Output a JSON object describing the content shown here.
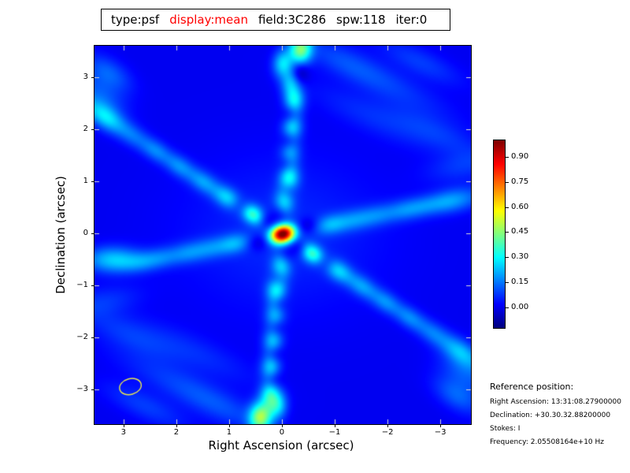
{
  "title_bar": {
    "segments": [
      {
        "text": "type:psf",
        "color": "#000000"
      },
      {
        "text": "display:mean",
        "color": "#ff0000"
      },
      {
        "text": "field:3C286",
        "color": "#000000"
      },
      {
        "text": "spw:118",
        "color": "#000000"
      },
      {
        "text": "iter:0",
        "color": "#000000"
      }
    ]
  },
  "chart_data": {
    "type": "heatmap",
    "description": "Radio interferometer PSF (point spread function) raster, jet colormap, peak normalized to 1.0 at field center with positive/negative sidelobe chains",
    "colormap": "jet",
    "xlabel": "Right Ascension (arcsec)",
    "ylabel": "Declination (arcsec)",
    "x_tick_values": [
      3,
      2,
      1,
      0,
      -1,
      -2,
      -3
    ],
    "x_tick_labels": [
      "3",
      "2",
      "1",
      "0",
      "−1",
      "−2",
      "−3"
    ],
    "y_tick_values": [
      3,
      2,
      1,
      0,
      -1,
      -2,
      -3
    ],
    "y_tick_labels": [
      "3",
      "2",
      "1",
      "0",
      "−1",
      "−2",
      "−3"
    ],
    "x_range_arcsec": [
      3.55,
      -3.58
    ],
    "y_range_arcsec": [
      3.6,
      -3.66
    ],
    "value_range": [
      -0.125,
      1.0
    ],
    "peak": {
      "ra_arcsec": 0.0,
      "dec_arcsec": 0.0,
      "value": 1.0
    },
    "colorbar": {
      "tick_values": [
        0.9,
        0.75,
        0.6,
        0.45,
        0.3,
        0.15,
        0.0
      ],
      "tick_labels": [
        "0.90",
        "0.75",
        "0.60",
        "0.45",
        "0.30",
        "0.15",
        "0.00"
      ]
    },
    "beam": {
      "ra_arcsec": 2.87,
      "dec_arcsec": -2.94,
      "semi_major_arcsec": 0.21,
      "semi_minor_arcsec": 0.15,
      "rotation_deg": -15,
      "color": "#e8e850"
    },
    "inner_tick_color": "#d8d8d8",
    "feature_fields": [
      "ra_arcsec",
      "dec_arcsec",
      "amplitude",
      "sigma_major_arcsec",
      "sigma_minor_arcsec",
      "rotation_deg_screen"
    ],
    "features": [
      [
        0.0,
        0.0,
        1.0,
        0.165,
        0.12,
        -15
      ],
      [
        0.0,
        0.0,
        0.06,
        1.3,
        1.0,
        0
      ],
      [
        0.05,
        0.43,
        -0.115,
        0.16,
        0.12,
        -85
      ],
      [
        -0.05,
        -0.43,
        -0.115,
        0.16,
        0.12,
        -85
      ],
      [
        0.34,
        0.27,
        -0.11,
        0.15,
        0.11,
        33
      ],
      [
        -0.34,
        -0.27,
        -0.11,
        0.15,
        0.11,
        33
      ],
      [
        0.46,
        -0.16,
        -0.09,
        0.16,
        0.11,
        -11
      ],
      [
        -0.46,
        0.16,
        -0.09,
        0.16,
        0.11,
        -11
      ],
      [
        0.55,
        0.37,
        0.34,
        0.17,
        0.12,
        33
      ],
      [
        -0.55,
        -0.37,
        0.34,
        0.17,
        0.12,
        33
      ],
      [
        0.8,
        0.54,
        -0.07,
        0.15,
        0.11,
        33
      ],
      [
        -0.8,
        -0.54,
        -0.07,
        0.15,
        0.11,
        33
      ],
      [
        1.05,
        0.7,
        0.22,
        0.2,
        0.13,
        33
      ],
      [
        -1.05,
        -0.7,
        0.22,
        0.2,
        0.13,
        33
      ],
      [
        1.5,
        1.0,
        0.17,
        0.22,
        0.13,
        33
      ],
      [
        -1.5,
        -1.0,
        0.17,
        0.22,
        0.13,
        33
      ],
      [
        1.95,
        1.3,
        0.16,
        0.22,
        0.13,
        33
      ],
      [
        -1.95,
        -1.3,
        0.16,
        0.22,
        0.13,
        33
      ],
      [
        2.4,
        1.6,
        0.15,
        0.22,
        0.13,
        33
      ],
      [
        -2.4,
        -1.6,
        0.15,
        0.22,
        0.13,
        33
      ],
      [
        2.85,
        1.9,
        0.13,
        0.25,
        0.14,
        33
      ],
      [
        -2.85,
        -1.9,
        0.14,
        0.25,
        0.14,
        33
      ],
      [
        3.3,
        2.2,
        0.18,
        0.25,
        0.15,
        33
      ],
      [
        -3.3,
        -2.2,
        0.14,
        0.25,
        0.15,
        33
      ],
      [
        3.55,
        2.4,
        0.13,
        0.3,
        0.16,
        33
      ],
      [
        -3.55,
        -2.4,
        0.12,
        0.3,
        0.16,
        33
      ],
      [
        -0.02,
        0.6,
        0.26,
        0.18,
        0.13,
        -85
      ],
      [
        0.02,
        -0.6,
        0.26,
        0.18,
        0.13,
        -85
      ],
      [
        -0.1,
        0.85,
        -0.1,
        0.14,
        0.11,
        -85
      ],
      [
        0.1,
        -0.85,
        -0.1,
        0.14,
        0.11,
        -85
      ],
      [
        -0.12,
        1.07,
        0.3,
        0.18,
        0.13,
        -85
      ],
      [
        0.12,
        -1.07,
        0.28,
        0.18,
        0.13,
        -85
      ],
      [
        -0.08,
        1.35,
        -0.09,
        0.14,
        0.11,
        -85
      ],
      [
        0.08,
        -1.35,
        -0.09,
        0.14,
        0.11,
        -85
      ],
      [
        -0.14,
        1.55,
        0.2,
        0.18,
        0.13,
        -85
      ],
      [
        0.14,
        -1.55,
        0.22,
        0.18,
        0.13,
        -85
      ],
      [
        -0.12,
        1.8,
        -0.09,
        0.14,
        0.11,
        -85
      ],
      [
        0.12,
        -1.8,
        -0.09,
        0.14,
        0.11,
        -85
      ],
      [
        -0.18,
        2.05,
        0.26,
        0.18,
        0.13,
        -85
      ],
      [
        0.18,
        -2.05,
        0.24,
        0.18,
        0.13,
        -85
      ],
      [
        -0.15,
        2.3,
        -0.1,
        0.14,
        0.11,
        -85
      ],
      [
        0.15,
        -2.3,
        -0.1,
        0.14,
        0.11,
        -85
      ],
      [
        -0.22,
        2.55,
        0.28,
        0.18,
        0.13,
        -85
      ],
      [
        0.22,
        -2.55,
        0.26,
        0.18,
        0.13,
        -85
      ],
      [
        -0.32,
        3.1,
        -0.12,
        0.15,
        0.12,
        -85
      ],
      [
        0.18,
        -2.8,
        -0.11,
        0.15,
        0.12,
        -85
      ],
      [
        -0.15,
        2.9,
        0.2,
        0.18,
        0.13,
        -85
      ],
      [
        0.24,
        -3.05,
        0.28,
        0.18,
        0.13,
        -85
      ],
      [
        0.0,
        3.27,
        0.25,
        0.18,
        0.13,
        -85
      ],
      [
        0.1,
        -3.29,
        0.25,
        0.18,
        0.13,
        -85
      ],
      [
        -0.34,
        3.54,
        0.42,
        0.2,
        0.15,
        -85
      ],
      [
        0.42,
        -3.51,
        0.45,
        0.2,
        0.15,
        -85
      ],
      [
        0.9,
        -0.18,
        0.16,
        0.22,
        0.13,
        -11
      ],
      [
        -0.9,
        0.18,
        0.16,
        0.22,
        0.13,
        -11
      ],
      [
        1.35,
        -0.27,
        0.12,
        0.25,
        0.14,
        -11
      ],
      [
        -1.35,
        0.27,
        0.13,
        0.25,
        0.14,
        -11
      ],
      [
        1.8,
        -0.36,
        0.13,
        0.25,
        0.14,
        -11
      ],
      [
        -1.8,
        0.36,
        0.12,
        0.25,
        0.14,
        -11
      ],
      [
        2.3,
        -0.46,
        0.12,
        0.25,
        0.14,
        -11
      ],
      [
        -2.3,
        0.46,
        0.13,
        0.25,
        0.14,
        -11
      ],
      [
        2.7,
        -0.54,
        0.13,
        0.25,
        0.14,
        -11
      ],
      [
        -2.7,
        0.54,
        0.12,
        0.25,
        0.14,
        -11
      ],
      [
        3.1,
        -0.52,
        0.17,
        0.28,
        0.16,
        -11
      ],
      [
        -3.1,
        0.62,
        0.12,
        0.25,
        0.15,
        -11
      ],
      [
        3.45,
        -0.45,
        0.13,
        0.3,
        0.16,
        -11
      ],
      [
        -3.45,
        0.69,
        0.11,
        0.3,
        0.16,
        -11
      ],
      [
        3.3,
        3.1,
        0.12,
        0.35,
        0.18,
        33
      ],
      [
        -3.3,
        -3.1,
        0.12,
        0.35,
        0.18,
        33
      ],
      [
        3.45,
        2.7,
        0.1,
        0.4,
        0.2,
        33
      ],
      [
        -3.45,
        -2.7,
        0.1,
        0.4,
        0.2,
        33
      ],
      [
        -1.2,
        3.3,
        0.08,
        0.7,
        0.2,
        25
      ],
      [
        1.2,
        -3.3,
        0.08,
        0.7,
        0.2,
        25
      ],
      [
        -2.1,
        2.8,
        0.06,
        0.9,
        0.22,
        25
      ],
      [
        2.1,
        -2.8,
        0.06,
        0.9,
        0.22,
        25
      ],
      [
        -1.7,
        2.25,
        0.06,
        0.9,
        0.22,
        25
      ],
      [
        1.7,
        -2.25,
        0.06,
        0.9,
        0.22,
        25
      ],
      [
        -2.9,
        1.95,
        0.07,
        0.7,
        0.2,
        25
      ],
      [
        2.9,
        -1.95,
        0.07,
        0.7,
        0.2,
        25
      ],
      [
        -2.6,
        3.3,
        0.08,
        0.6,
        0.18,
        25
      ],
      [
        2.6,
        -3.3,
        0.08,
        0.6,
        0.18,
        25
      ],
      [
        -3.4,
        1.3,
        0.07,
        0.5,
        0.2,
        -11
      ],
      [
        3.4,
        -1.3,
        0.07,
        0.5,
        0.2,
        -11
      ]
    ]
  },
  "reference": {
    "heading": "Reference position:",
    "lines": [
      "Right Ascension: 13:31:08.27900000",
      "Declination: +30.30.32.88200000",
      "Stokes: I",
      "Frequency: 2.05508164e+10 Hz"
    ]
  }
}
